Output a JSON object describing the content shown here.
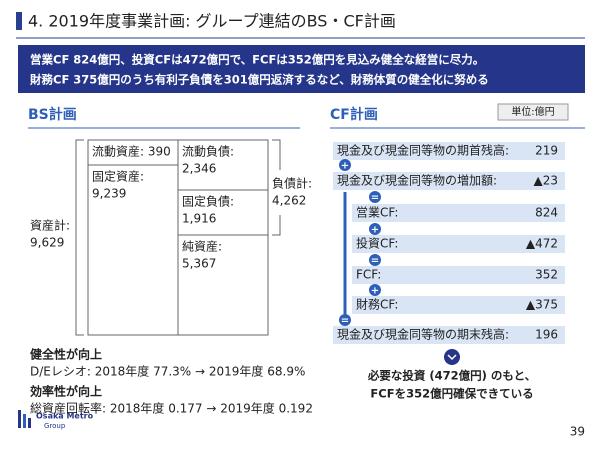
{
  "header": {
    "title": "4. 2019年度事業計画: グループ連結のBS・CF計画"
  },
  "banner": [
    "営業CF 824億円、投資CFは472億円で、FCFは352億円を見込み健全な経営に尽力。",
    "財務CF 375億円のうち有利子負債を301億円返済するなど、財務体質の健全化に努める"
  ],
  "bs": {
    "heading": "BS計画",
    "cells": [
      {
        "label": "流動資産: 390"
      },
      {
        "label": "固定資産:",
        "value": "9,239"
      },
      {
        "label": "流動負債:",
        "value": "2,346"
      },
      {
        "label": "固定負債:",
        "value": "1,916"
      },
      {
        "label": "純資産:",
        "value": "5,367"
      }
    ],
    "assets": {
      "label": "資産計:",
      "value": "9,629"
    },
    "liabilities": {
      "label": "負債計:",
      "value": "4,262"
    },
    "notes": [
      "健全性が向上",
      "D/Eレシオ: 2018年度 77.3% → 2019年度 68.9%",
      "効率性が向上",
      "総資産回転率: 2018年度 0.177 → 2019年度 0.192"
    ]
  },
  "cf": {
    "heading": "CF計画",
    "unit": "単位:億円",
    "rows": [
      {
        "label": "現金及び現金同等物の期首残高:",
        "value": "219"
      },
      {
        "label": "現金及び現金同等物の増加額:",
        "value": "▲23"
      },
      {
        "label": "営業CF:",
        "value": "824"
      },
      {
        "label": "投資CF:",
        "value": "▲472"
      },
      {
        "label": "FCF:",
        "value": "352"
      },
      {
        "label": "財務CF:",
        "value": "▲375"
      },
      {
        "label": "現金及び現金同等物の期末残高:",
        "value": "196"
      }
    ],
    "ops": [
      "+",
      "=",
      "+",
      "=",
      "+",
      "="
    ],
    "conclusion": [
      "必要な投資 (472億円) のもと、",
      "FCFを352億円確保できている"
    ]
  },
  "footer": {
    "logo": "Osaka Metro",
    "logo_sub": "Group",
    "page": "39"
  }
}
